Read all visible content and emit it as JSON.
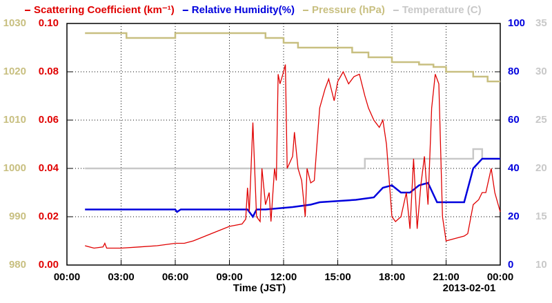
{
  "chart_data": {
    "type": "line",
    "x_label": "Time (JST)",
    "date_label": "2013-02-01",
    "xlim": [
      0,
      24
    ],
    "xticks": [
      {
        "value": 0,
        "label": "00:00"
      },
      {
        "value": 3,
        "label": "03:00"
      },
      {
        "value": 6,
        "label": "06:00"
      },
      {
        "value": 9,
        "label": "09:00"
      },
      {
        "value": 12,
        "label": "12:00"
      },
      {
        "value": 15,
        "label": "15:00"
      },
      {
        "value": 18,
        "label": "18:00"
      },
      {
        "value": 21,
        "label": "21:00"
      },
      {
        "value": 24,
        "label": "00:00"
      }
    ],
    "ylim": [
      0,
      0.1
    ],
    "yticks": [
      {
        "value": 0,
        "label": "0.00"
      },
      0.02,
      0.04,
      0.06,
      0.08,
      {
        "value": 0.1,
        "label": "0.10"
      }
    ],
    "y2lim": [
      0,
      100
    ],
    "y2ticks": [
      0,
      20,
      40,
      60,
      80,
      100
    ],
    "y3lim": [
      980,
      1030
    ],
    "y3ticks": [
      980,
      990,
      1000,
      1010,
      1020,
      1030
    ],
    "y4lim": [
      10,
      35
    ],
    "y4ticks": [
      10,
      15,
      20,
      25,
      30,
      35
    ],
    "grid": true,
    "series": [
      {
        "name": "Scattering Coefficient (km⁻¹)",
        "color": "#e00000",
        "axis": "y",
        "x": [
          1.0,
          1.5,
          2.0,
          2.1,
          2.2,
          3,
          4,
          5,
          6,
          6.5,
          7,
          8,
          9,
          9.7,
          9.9,
          10.0,
          10.1,
          10.3,
          10.5,
          10.7,
          10.8,
          11.0,
          11.2,
          11.3,
          11.5,
          11.6,
          11.7,
          11.8,
          12.0,
          12.1,
          12.2,
          12.5,
          12.6,
          12.8,
          13.0,
          13.2,
          13.3,
          13.5,
          13.7,
          14.0,
          14.3,
          14.5,
          14.8,
          15.0,
          15.3,
          15.6,
          15.9,
          16.2,
          16.5,
          16.7,
          17.0,
          17.3,
          17.5,
          17.7,
          17.9,
          18.0,
          18.2,
          18.5,
          18.8,
          19.0,
          19.2,
          19.4,
          19.6,
          19.8,
          20.0,
          20.2,
          20.4,
          20.6,
          20.8,
          21.0,
          21.5,
          22.0,
          22.2,
          22.5,
          22.8,
          23.0,
          23.2,
          23.5,
          23.7,
          24.0
        ],
        "values": [
          0.008,
          0.007,
          0.0075,
          0.009,
          0.007,
          0.007,
          0.0075,
          0.008,
          0.009,
          0.009,
          0.01,
          0.013,
          0.016,
          0.017,
          0.019,
          0.032,
          0.022,
          0.059,
          0.02,
          0.018,
          0.04,
          0.025,
          0.03,
          0.018,
          0.04,
          0.035,
          0.079,
          0.075,
          0.08,
          0.083,
          0.04,
          0.045,
          0.055,
          0.04,
          0.035,
          0.02,
          0.04,
          0.034,
          0.035,
          0.065,
          0.073,
          0.077,
          0.068,
          0.076,
          0.08,
          0.075,
          0.078,
          0.079,
          0.07,
          0.065,
          0.06,
          0.057,
          0.06,
          0.05,
          0.03,
          0.02,
          0.018,
          0.02,
          0.03,
          0.015,
          0.044,
          0.015,
          0.033,
          0.045,
          0.025,
          0.065,
          0.079,
          0.075,
          0.02,
          0.01,
          0.011,
          0.012,
          0.013,
          0.025,
          0.027,
          0.03,
          0.03,
          0.04,
          0.03,
          0.022
        ]
      },
      {
        "name": "Relative Humidity(%)",
        "color": "#0000dd",
        "axis": "y2",
        "x": [
          1,
          6,
          6.1,
          6.3,
          10,
          10.3,
          10.5,
          11,
          12.5,
          13.5,
          14,
          16,
          17,
          17.5,
          18,
          18.5,
          19,
          19.5,
          20,
          20.5,
          22,
          22.5,
          23,
          24
        ],
        "values": [
          23,
          23,
          22,
          23,
          23,
          20,
          23,
          23,
          24,
          25,
          26,
          27,
          28,
          32,
          33,
          30,
          30,
          33,
          34,
          26,
          26,
          40,
          44,
          44
        ]
      },
      {
        "name": "Pressure (hPa)",
        "color": "#c8bf80",
        "axis": "y3",
        "x": [
          1,
          3.3,
          3.3,
          6,
          6,
          11,
          11,
          12,
          12,
          12.8,
          12.8,
          15.8,
          15.8,
          16.7,
          16.7,
          18,
          18,
          19.5,
          19.5,
          20.3,
          20.3,
          21,
          21,
          22.5,
          22.5,
          23.3,
          23.3,
          24
        ],
        "values": [
          1028,
          1028,
          1027,
          1027,
          1028,
          1028,
          1027,
          1027,
          1026,
          1026,
          1025,
          1025,
          1024,
          1024,
          1023,
          1023,
          1022,
          1022,
          1021.5,
          1021.5,
          1021,
          1021,
          1020,
          1020,
          1019,
          1019,
          1018,
          1018
        ]
      },
      {
        "name": "Temperature (C)",
        "color": "#c8c8c8",
        "axis": "y4",
        "x": [
          1,
          16.5,
          16.5,
          22.5,
          22.5,
          23,
          23,
          24
        ],
        "values": [
          20,
          20,
          21,
          21,
          22,
          22,
          21,
          21
        ]
      }
    ]
  }
}
